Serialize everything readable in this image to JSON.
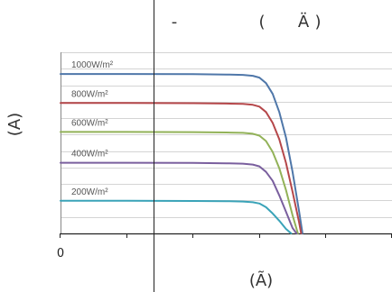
{
  "chart_data": {
    "type": "line",
    "title_parts": [
      "-",
      "(",
      "Ä",
      ")"
    ],
    "xlabel": "(Ã)",
    "ylabel": "(A)",
    "x_tick_labels": [
      "0"
    ],
    "xlim": [
      0,
      500
    ],
    "ylim": [
      0,
      10
    ],
    "grid": true,
    "legend": "inline-left",
    "series": [
      {
        "name": "1000W/m²",
        "color": "#4f77a9",
        "x": [
          0,
          100,
          200,
          250,
          275,
          290,
          300,
          310,
          320,
          330,
          340,
          350,
          360,
          365
        ],
        "y": [
          8.8,
          8.8,
          8.79,
          8.77,
          8.75,
          8.7,
          8.6,
          8.3,
          7.7,
          6.7,
          5.3,
          3.4,
          1.2,
          0
        ]
      },
      {
        "name": "800W/m²",
        "color": "#b5474a",
        "x": [
          0,
          100,
          200,
          250,
          275,
          290,
          300,
          310,
          320,
          330,
          340,
          350,
          360,
          363
        ],
        "y": [
          7.2,
          7.2,
          7.19,
          7.17,
          7.15,
          7.1,
          7.0,
          6.7,
          6.1,
          5.2,
          3.9,
          2.3,
          0.6,
          0
        ]
      },
      {
        "name": "600W/m²",
        "color": "#92b258",
        "x": [
          0,
          100,
          200,
          250,
          275,
          290,
          300,
          310,
          320,
          330,
          340,
          350,
          358
        ],
        "y": [
          5.6,
          5.6,
          5.59,
          5.57,
          5.55,
          5.5,
          5.4,
          5.1,
          4.5,
          3.6,
          2.4,
          1.0,
          0
        ]
      },
      {
        "name": "400W/m²",
        "color": "#7a5f9e",
        "x": [
          0,
          100,
          200,
          250,
          275,
          290,
          300,
          310,
          320,
          330,
          340,
          350,
          356
        ],
        "y": [
          3.9,
          3.9,
          3.89,
          3.87,
          3.85,
          3.8,
          3.7,
          3.4,
          2.9,
          2.1,
          1.2,
          0.3,
          0
        ]
      },
      {
        "name": "200W/m²",
        "color": "#3aa3b8",
        "x": [
          0,
          100,
          200,
          250,
          275,
          290,
          300,
          310,
          320,
          330,
          340,
          348
        ],
        "y": [
          1.8,
          1.8,
          1.79,
          1.78,
          1.76,
          1.72,
          1.65,
          1.45,
          1.1,
          0.7,
          0.25,
          0
        ]
      }
    ]
  }
}
